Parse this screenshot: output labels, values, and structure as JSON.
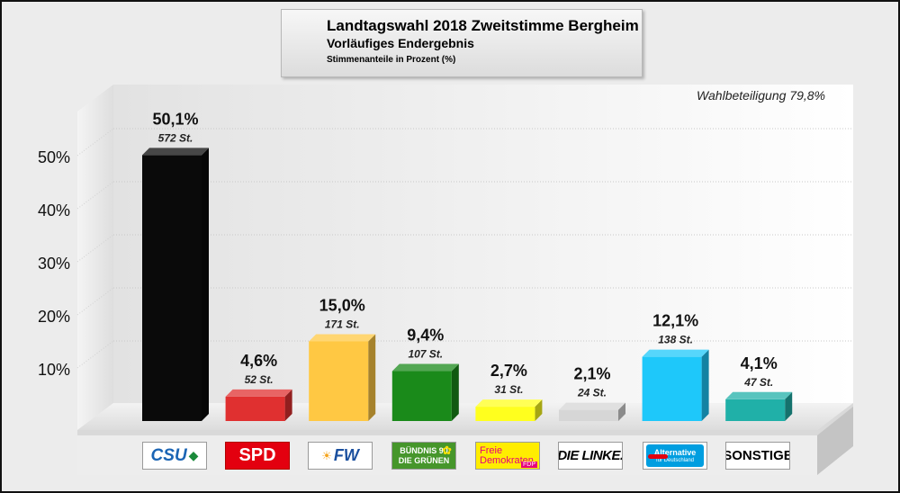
{
  "chart_data": {
    "type": "bar",
    "title": "Landtagswahl 2018 Zweitstimme Bergheim",
    "subtitle": "Vorläufiges Endergebnis",
    "note": "Stimmenanteile in Prozent (%)",
    "turnout_label": "Wahlbeteiligung 79,8%",
    "categories": [
      "CSU",
      "SPD",
      "FW",
      "GRÜNE",
      "FDP",
      "DIE LINKE",
      "AfD",
      "SONSTIGE"
    ],
    "values": [
      50.1,
      4.6,
      15.0,
      9.4,
      2.7,
      2.1,
      12.1,
      4.1
    ],
    "value_labels": [
      "50,1%",
      "4,6%",
      "15,0%",
      "9,4%",
      "2,7%",
      "2,1%",
      "12,1%",
      "4,1%"
    ],
    "votes": [
      572,
      52,
      171,
      107,
      31,
      24,
      138,
      47
    ],
    "votes_labels": [
      "572 St.",
      "52 St.",
      "171 St.",
      "107 St.",
      "31 St.",
      "24 St.",
      "138 St.",
      "47 St."
    ],
    "colors": [
      "#0a0a0a",
      "#e03030",
      "#ffc843",
      "#1a8a1a",
      "#ffff1e",
      "#d6d6d6",
      "#1ec8fa",
      "#20b0a8"
    ],
    "y_ticks": [
      "10%",
      "20%",
      "30%",
      "40%",
      "50%"
    ],
    "ylim": [
      0,
      60
    ],
    "grid": true
  },
  "logos": [
    {
      "text": "CSU",
      "icon": "csu-lion-icon"
    },
    {
      "text": "SPD"
    },
    {
      "text": "FW",
      "icon": "sun-rays-icon"
    },
    {
      "line1": "BÜNDNIS 90",
      "line2": "DIE GRÜNEN",
      "icon": "sunflower-icon"
    },
    {
      "line1": "Freie",
      "line2": "Demokraten",
      "line3": "FDP"
    },
    {
      "text": "DIE LINKE."
    },
    {
      "line1": "Alternative",
      "line2": "für Deutschland",
      "icon": "arrow-swoosh-icon"
    },
    {
      "text": "SONSTIGE"
    }
  ]
}
